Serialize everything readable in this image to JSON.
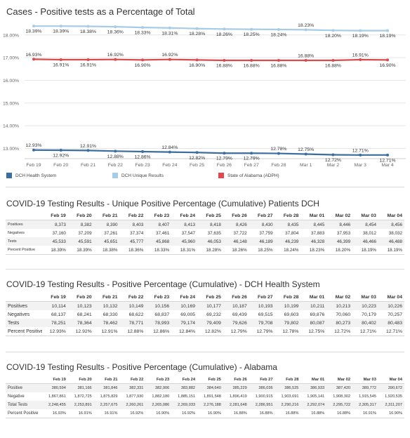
{
  "chart_data": {
    "type": "line",
    "title": "Cases - Positive tests as a Percentage of Total",
    "x": [
      "Feb 19",
      "Feb 20",
      "Feb 21",
      "Feb 22",
      "Feb 23",
      "Feb 24",
      "Feb 25",
      "Feb 26",
      "Feb 27",
      "Feb 28",
      "Mar 1",
      "Mar 2",
      "Mar 3",
      "Mar 4"
    ],
    "yticks": [
      "18.00%",
      "17.00%",
      "16.00%",
      "15.00%",
      "14.00%",
      "13.00%"
    ],
    "ylim": [
      12.55,
      18.55
    ],
    "grid": true,
    "legend_position": "bottom",
    "series": [
      {
        "name": "DCH Health System",
        "color": "#3b6e9e",
        "values": [
          12.93,
          12.92,
          12.91,
          12.88,
          12.86,
          12.84,
          12.82,
          12.79,
          12.79,
          12.78,
          12.75,
          12.72,
          12.71,
          12.71
        ],
        "labels": [
          "12.93%",
          "12.92%",
          "12.91%",
          "12.88%",
          "12.86%",
          "12.84%",
          "12.82%",
          "12.79%",
          "12.79%",
          "12.78%",
          "12.75%",
          "12.72%",
          "12.71%",
          "12.71%"
        ],
        "label_pos": [
          "above",
          "below",
          "above",
          "below",
          "below",
          "above",
          "below",
          "below",
          "below",
          "above",
          "above",
          "below",
          "above",
          "below"
        ]
      },
      {
        "name": "DCH Unique Results",
        "color": "#a8cbe6",
        "values": [
          18.39,
          18.39,
          18.38,
          18.36,
          18.33,
          18.31,
          18.28,
          18.26,
          18.25,
          18.24,
          18.23,
          18.2,
          18.19,
          18.19
        ],
        "labels": [
          "18.39%",
          "18.39%",
          "18.38%",
          "18.36%",
          "18.33%",
          "18.31%",
          "18.28%",
          "18.26%",
          "18.25%",
          "18.24%",
          "18.23%",
          "18.20%",
          "18.19%",
          "18.19%"
        ],
        "label_pos": [
          "below",
          "below",
          "below",
          "below",
          "below",
          "below",
          "below",
          "below",
          "below",
          "below",
          "above",
          "below",
          "below",
          "below"
        ]
      },
      {
        "name": "State of Alabama (ADPH)",
        "color": "#d94b4f",
        "values": [
          16.93,
          16.91,
          16.91,
          16.92,
          16.9,
          16.92,
          16.9,
          16.88,
          16.88,
          16.88,
          16.88,
          16.88,
          16.91,
          16.9
        ],
        "labels": [
          "16.93%",
          "16.91%",
          "16.91%",
          "16.92%",
          "16.90%",
          "16.92%",
          "16.90%",
          "16.88%",
          "16.88%",
          "16.88%",
          "16.88%",
          "16.88%",
          "16.91%",
          "16.90%"
        ],
        "label_pos": [
          "above",
          "below",
          "below",
          "above",
          "below",
          "above",
          "below",
          "below",
          "below",
          "below",
          "above",
          "below",
          "above",
          "below"
        ]
      }
    ]
  },
  "tables": [
    {
      "title": "COVID-19 Testing Results - Unique Positive Percentage (Cumulative) Patients DCH",
      "columns": [
        "Feb 19",
        "Feb 20",
        "Feb 21",
        "Feb 22",
        "Feb 23",
        "Feb 24",
        "Feb 25",
        "Feb 26",
        "Feb 27",
        "Feb 28",
        "Mar 01",
        "Mar 02",
        "Mar 03",
        "Mar 04"
      ],
      "rows": [
        {
          "label": "Positives",
          "values": [
            "8,373",
            "8,382",
            "8,390",
            "8,403",
            "8,407",
            "8,413",
            "8,418",
            "8,426",
            "8,430",
            "8,435",
            "8,445",
            "8,446",
            "8,454",
            "8,456"
          ]
        },
        {
          "label": "Negatives",
          "values": [
            "37,160",
            "37,209",
            "37,261",
            "37,374",
            "37,461",
            "37,547",
            "37,635",
            "37,722",
            "37,759",
            "37,804",
            "37,883",
            "37,953",
            "38,012",
            "38,032"
          ]
        },
        {
          "label": "Tests",
          "values": [
            "45,533",
            "45,591",
            "45,651",
            "45,777",
            "45,868",
            "45,960",
            "46,053",
            "46,148",
            "46,189",
            "46,239",
            "46,328",
            "46,399",
            "46,466",
            "46,488"
          ]
        },
        {
          "label": "Percent Positive",
          "values": [
            "18.39%",
            "18.39%",
            "18.38%",
            "18.36%",
            "18.33%",
            "18.31%",
            "18.28%",
            "18.26%",
            "18.25%",
            "18.24%",
            "18.23%",
            "18.20%",
            "18.19%",
            "18.19%"
          ]
        }
      ]
    },
    {
      "title": "COVID-19 Testing Results - Positive Percentage (Cumulative) - DCH Health System",
      "columns": [
        "Feb 19",
        "Feb 20",
        "Feb 21",
        "Feb 22",
        "Feb 23",
        "Feb 24",
        "Feb 25",
        "Feb 26",
        "Feb 27",
        "Feb 28",
        "Mar 01",
        "Mar 02",
        "Mar 03",
        "Mar 04"
      ],
      "rows": [
        {
          "label": "Positives",
          "values": [
            "10,114",
            "10,123",
            "10,132",
            "10,149",
            "10,156",
            "10,169",
            "10,177",
            "10,187",
            "10,193",
            "10,199",
            "10,211",
            "10,213",
            "10,223",
            "10,226"
          ]
        },
        {
          "label": "Negatives",
          "values": [
            "68,137",
            "68,241",
            "68,330",
            "68,622",
            "68,837",
            "69,005",
            "69,232",
            "69,439",
            "69,515",
            "69,603",
            "69,876",
            "70,060",
            "70,179",
            "70,257"
          ]
        },
        {
          "label": "Tests",
          "values": [
            "78,251",
            "78,364",
            "78,462",
            "78,771",
            "78,993",
            "79,174",
            "79,409",
            "79,626",
            "79,708",
            "79,802",
            "80,087",
            "80,273",
            "80,402",
            "80,483"
          ]
        },
        {
          "label": "Percent Positive",
          "values": [
            "12.93%",
            "12.92%",
            "12.91%",
            "12.88%",
            "12.86%",
            "12.84%",
            "12.82%",
            "12.79%",
            "12.79%",
            "12.78%",
            "12.75%",
            "12.72%",
            "12.71%",
            "12.71%"
          ]
        }
      ]
    },
    {
      "title": "COVID-19 Testing Results - Positive Percentage (Cumulative) - Alabama",
      "columns": [
        "Feb 19",
        "Feb 20",
        "Feb 21",
        "Feb 22",
        "Feb 23",
        "Feb 24",
        "Feb 25",
        "Feb 26",
        "Feb 27",
        "Feb 28",
        "Mar 01",
        "Mar 02",
        "Mar 03",
        "Mar 04"
      ],
      "rows": [
        {
          "label": "Positive",
          "values": [
            "380,594",
            "381,166",
            "381,846",
            "382,331",
            "382,906",
            "383,882",
            "384,640",
            "385,229",
            "386,036",
            "386,525",
            "386,933",
            "387,420",
            "389,772",
            "390,672"
          ]
        },
        {
          "label": "Negative",
          "values": [
            "1,867,861",
            "1,872,725",
            "1,875,829",
            "1,877,930",
            "1,882,180",
            "1,885,151",
            "1,891,548",
            "1,896,419",
            "1,900,915",
            "1,903,691",
            "1,905,141",
            "1,908,302",
            "1,915,545",
            "1,920,535"
          ]
        },
        {
          "label": "Total Tests",
          "values": [
            "2,248,455",
            "2,253,891",
            "2,257,675",
            "2,260,261",
            "2,265,086",
            "2,269,033",
            "2,276,188",
            "2,281,648",
            "2,286,951",
            "2,290,216",
            "2,292,074",
            "2,295,722",
            "2,305,317",
            "2,311,207"
          ]
        },
        {
          "label": "Percent Positive",
          "values": [
            "16.93%",
            "16.91%",
            "16.91%",
            "16.92%",
            "16.90%",
            "16.92%",
            "16.90%",
            "16.88%",
            "16.88%",
            "16.88%",
            "16.88%",
            "16.88%",
            "16.91%",
            "16.90%"
          ]
        }
      ]
    }
  ]
}
